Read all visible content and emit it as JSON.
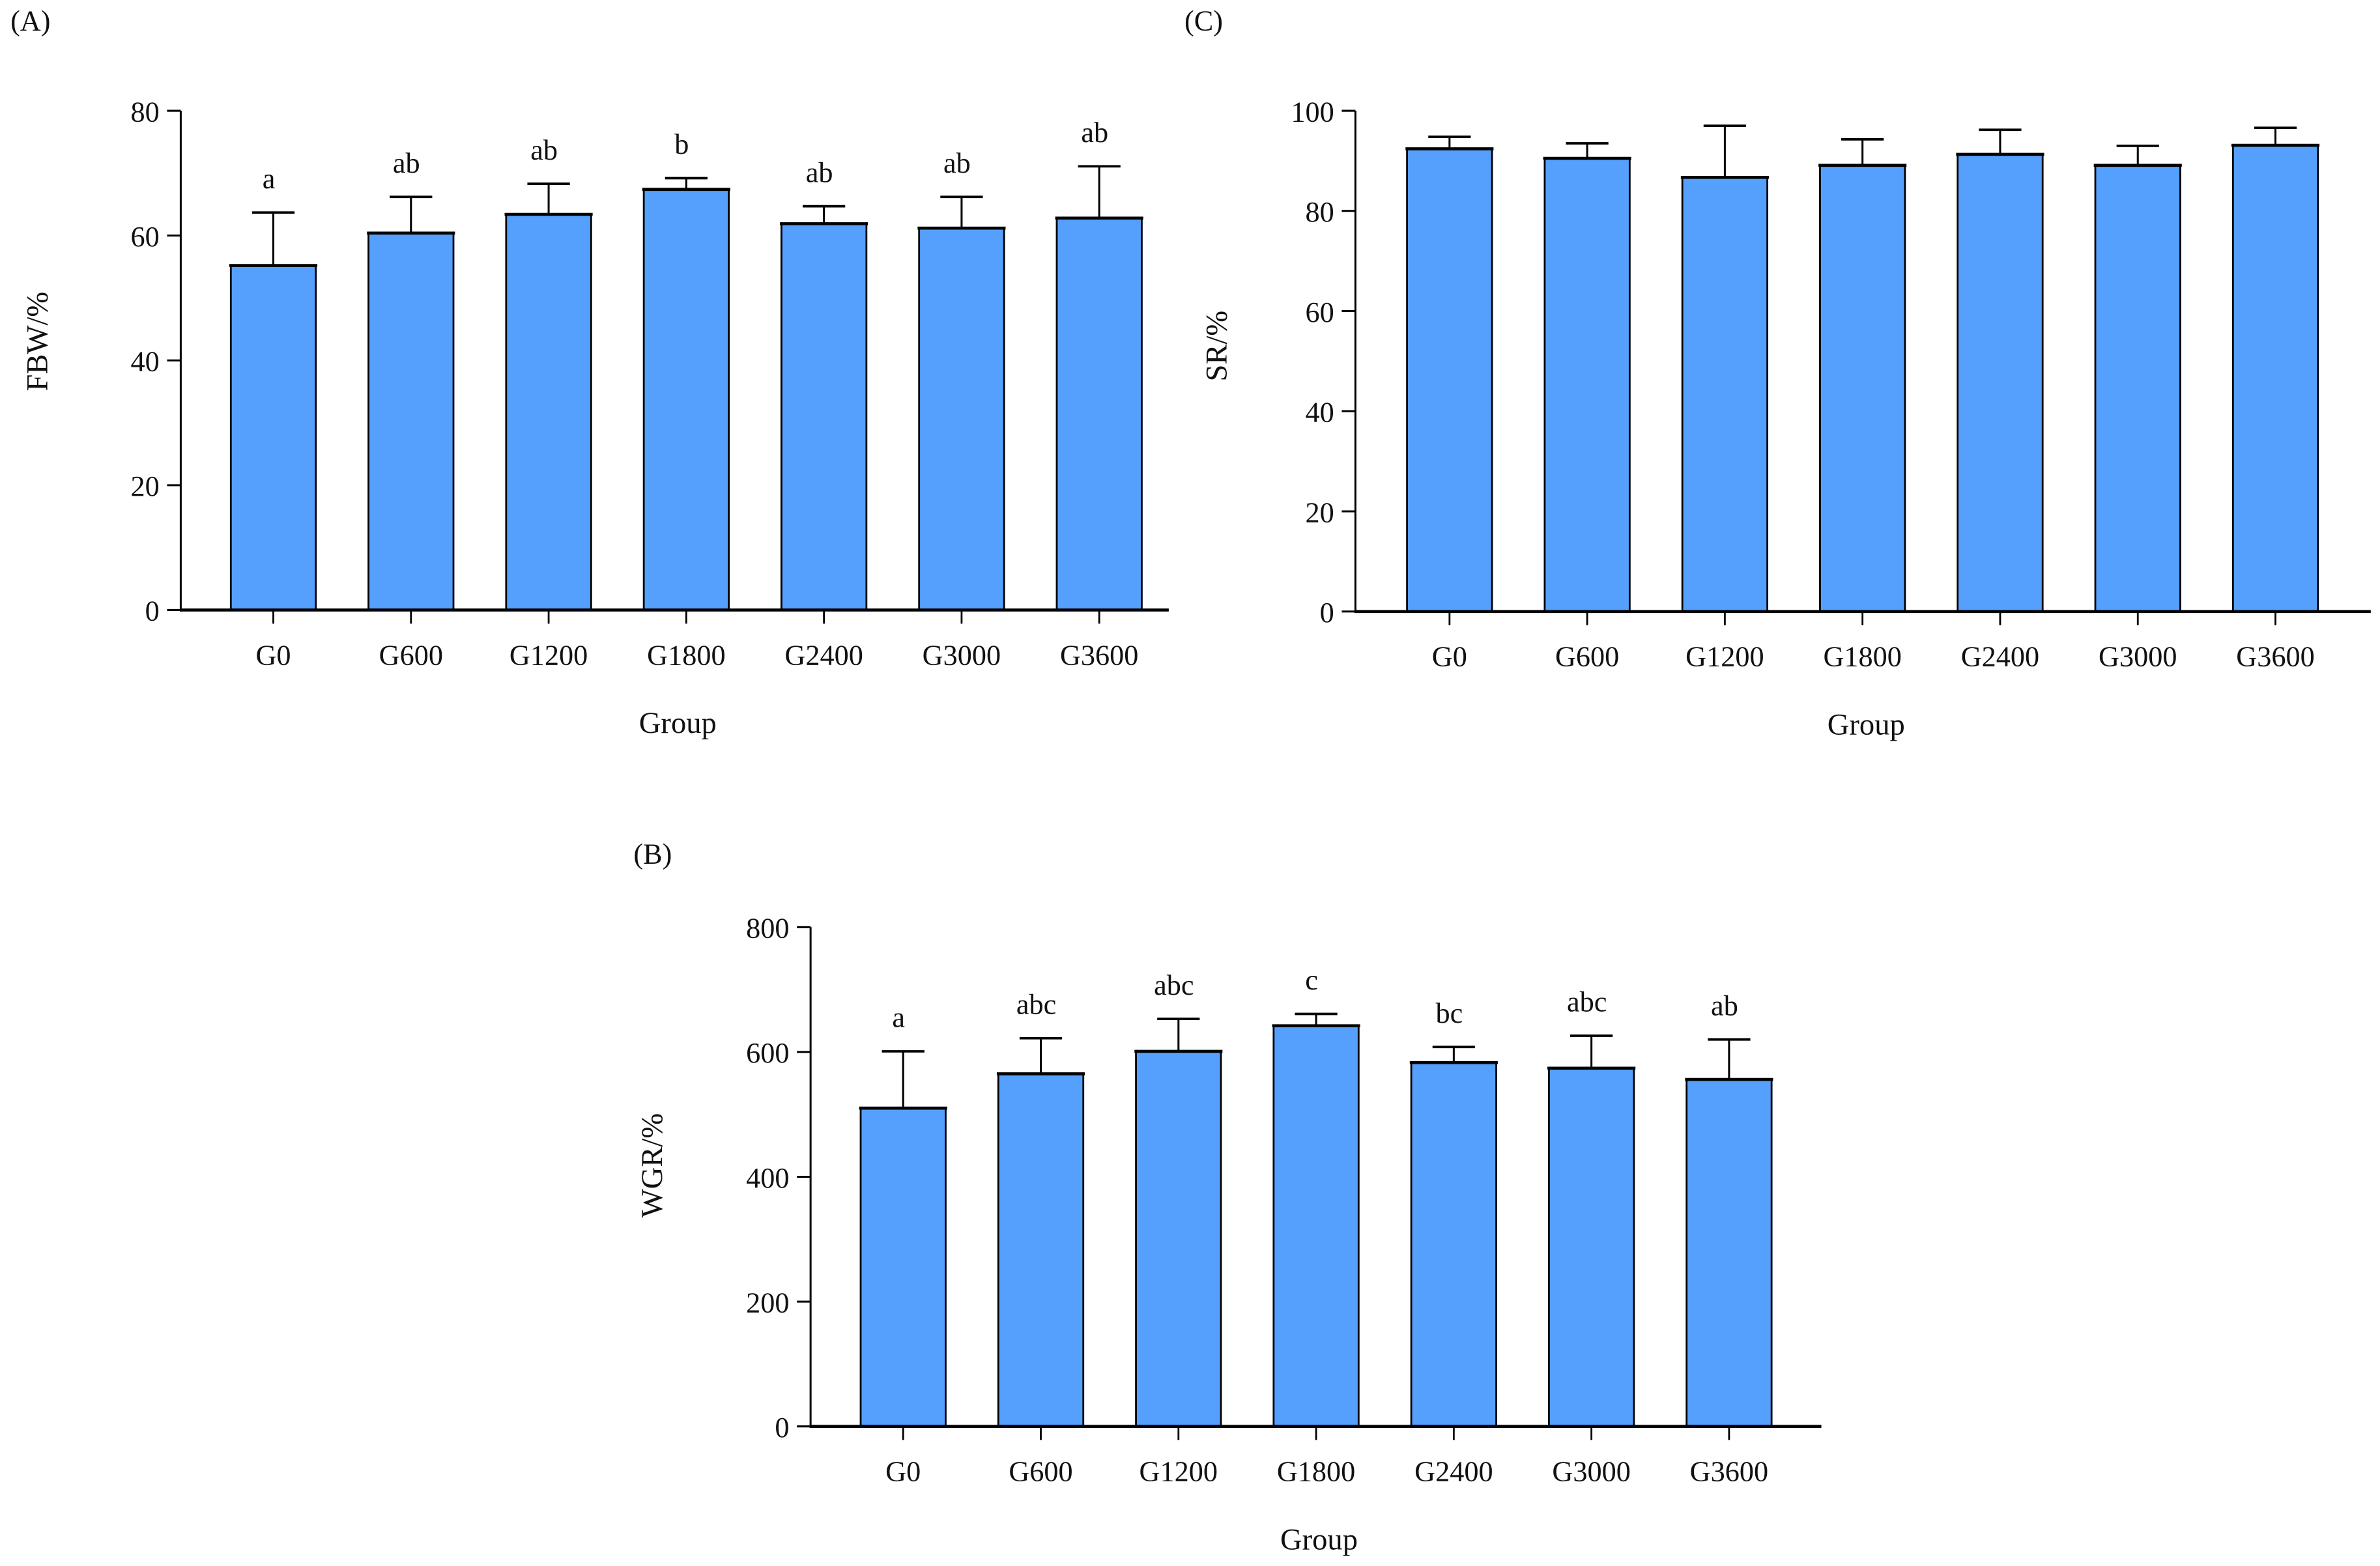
{
  "colors": {
    "bar": "#56a0fd",
    "stroke": "#000000"
  },
  "chart_data": [
    {
      "id": "A",
      "panel_label": "(A)",
      "type": "bar",
      "categories": [
        "G0",
        "G600",
        "G1200",
        "G1800",
        "G2400",
        "G3000",
        "G3600"
      ],
      "values": [
        55.2,
        60.4,
        63.4,
        67.4,
        61.9,
        61.2,
        62.8
      ],
      "error_upper": [
        63.7,
        66.2,
        68.3,
        69.2,
        64.7,
        66.2,
        71.1
      ],
      "significance": [
        "a",
        "ab",
        "ab",
        "b",
        "ab",
        "ab",
        "ab"
      ],
      "xlabel": "Group",
      "ylabel": "FBW/%",
      "ylim": [
        0,
        80
      ],
      "yticks": [
        "0",
        "20",
        "40",
        "60",
        "80"
      ]
    },
    {
      "id": "C",
      "panel_label": "(C)",
      "type": "bar",
      "categories": [
        "G0",
        "G600",
        "G1200",
        "G1800",
        "G2400",
        "G3000",
        "G3600"
      ],
      "values": [
        92.4,
        90.5,
        86.7,
        89.1,
        91.3,
        89.1,
        93.1
      ],
      "error_upper": [
        94.8,
        93.5,
        97.0,
        94.3,
        96.2,
        93.0,
        96.6
      ],
      "significance": [],
      "xlabel": "Group",
      "ylabel": "SR/%",
      "ylim": [
        0,
        100
      ],
      "yticks": [
        "0",
        "20",
        "40",
        "60",
        "80",
        "100"
      ]
    },
    {
      "id": "B",
      "panel_label": "(B)",
      "type": "bar",
      "categories": [
        "G0",
        "G600",
        "G1200",
        "G1800",
        "G2400",
        "G3000",
        "G3600"
      ],
      "values": [
        510,
        565,
        601,
        642,
        583,
        574,
        556
      ],
      "error_upper": [
        601,
        622,
        653,
        661,
        608,
        626,
        620
      ],
      "significance": [
        "a",
        "abc",
        "abc",
        "c",
        "bc",
        "abc",
        "ab"
      ],
      "xlabel": "Group",
      "ylabel": "WGR/%",
      "ylim": [
        0,
        800
      ],
      "yticks": [
        "0",
        "200",
        "400",
        "600",
        "800"
      ]
    }
  ]
}
